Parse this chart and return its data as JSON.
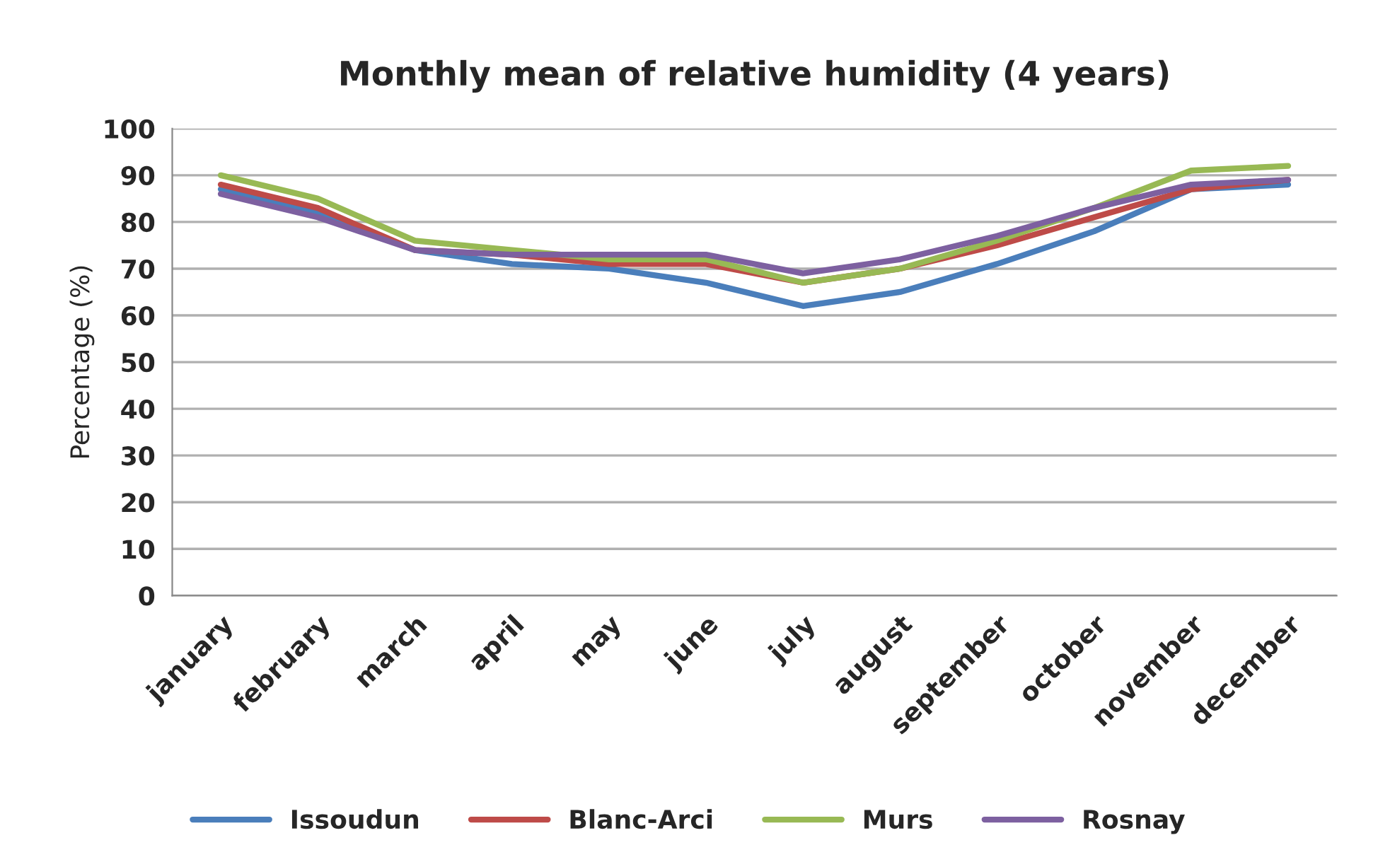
{
  "chart_data": {
    "type": "line",
    "title": "Monthly mean of relative humidity (4 years)",
    "ylabel": "Percentage (%)",
    "categories": [
      "january",
      "february",
      "march",
      "april",
      "may",
      "june",
      "july",
      "august",
      "september",
      "october",
      "november",
      "december"
    ],
    "series": [
      {
        "name": "Issoudun",
        "color": "#4a7ebb",
        "values": [
          87,
          82,
          74,
          71,
          70,
          67,
          62,
          65,
          71,
          78,
          87,
          88
        ]
      },
      {
        "name": "Blanc-Arci",
        "color": "#be4b48",
        "values": [
          88,
          83,
          74,
          73,
          71,
          71,
          67,
          70,
          75,
          81,
          87,
          89
        ]
      },
      {
        "name": "Murs",
        "color": "#98b954",
        "values": [
          90,
          85,
          76,
          74,
          72,
          72,
          67,
          70,
          76,
          83,
          91,
          92
        ]
      },
      {
        "name": "Rosnay",
        "color": "#7d60a0",
        "values": [
          86,
          81,
          74,
          73,
          73,
          73,
          69,
          72,
          77,
          83,
          88,
          89
        ]
      }
    ],
    "ylim": [
      0,
      100
    ],
    "yticks": [
      0,
      10,
      20,
      30,
      40,
      50,
      60,
      70,
      80,
      90,
      100
    ],
    "grid": "y",
    "legend": "bottom",
    "marker": "none",
    "line_style": "solid"
  }
}
